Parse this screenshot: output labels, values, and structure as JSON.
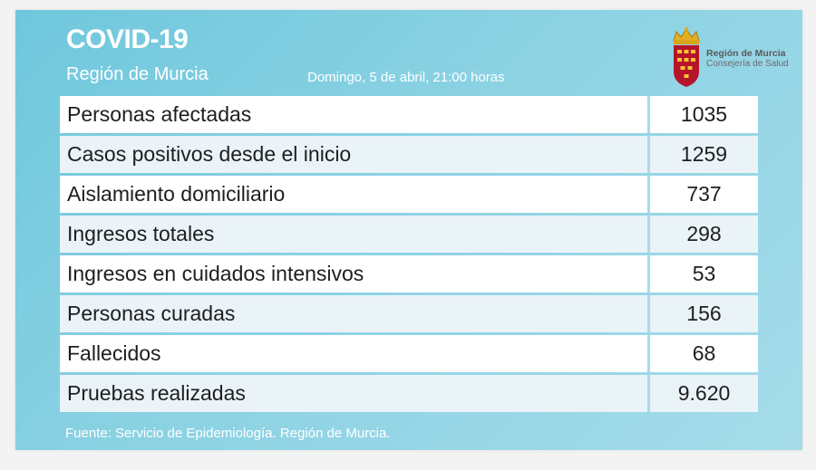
{
  "header": {
    "title": "COVID-19",
    "subtitle": "Región de Murcia",
    "datetime": "Domingo, 5 de abril, 21:00 horas"
  },
  "logo": {
    "name": "Región de Murcia",
    "department": "Consejería de Salud",
    "icon": "murcia-coat-of-arms-icon"
  },
  "stats": [
    {
      "label": "Personas afectadas",
      "value": "1035"
    },
    {
      "label": "Casos positivos desde el inicio",
      "value": "1259"
    },
    {
      "label": "Aislamiento domiciliario",
      "value": "737"
    },
    {
      "label": "Ingresos totales",
      "value": "298"
    },
    {
      "label": "Ingresos en cuidados intensivos",
      "value": "53"
    },
    {
      "label": "Personas curadas",
      "value": "156"
    },
    {
      "label": "Fallecidos",
      "value": "68"
    },
    {
      "label": "Pruebas realizadas",
      "value": "9.620"
    }
  ],
  "footer": {
    "source": "Fuente: Servicio de Epidemiología. Región de Murcia."
  },
  "colors": {
    "panel": "#8bd2e3",
    "row_light": "#ffffff",
    "row_shade": "#eaf3f8",
    "shield_red": "#b5142b",
    "crown_gold": "#e0b020"
  }
}
